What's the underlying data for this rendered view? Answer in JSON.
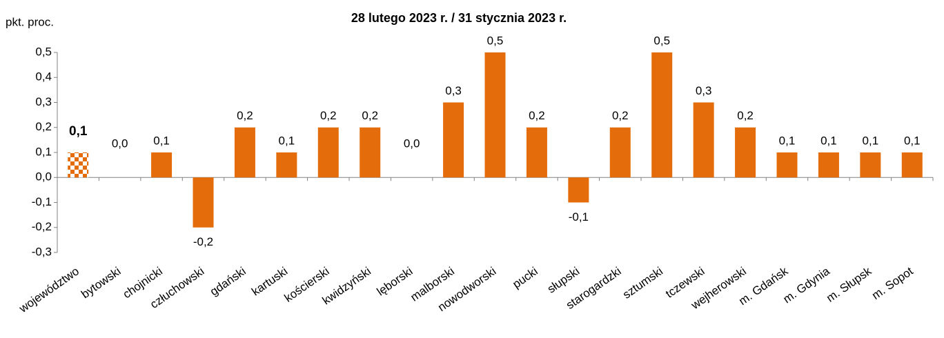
{
  "chart_data": {
    "type": "bar",
    "title": "28 lutego 2023 r. / 31 stycznia 2023 r.",
    "y_axis_label": "pkt. proc.",
    "categories": [
      "województwo",
      "bytowski",
      "chojnicki",
      "człuchowski",
      "gdański",
      "kartuski",
      "kościerski",
      "kwidzyński",
      "lęborski",
      "malborski",
      "nowodworski",
      "pucki",
      "słupski",
      "starogardzki",
      "sztumski",
      "tczewski",
      "wejherowski",
      "m. Gdańsk",
      "m. Gdynia",
      "m. Słupsk",
      "m. Sopot"
    ],
    "values": [
      0.1,
      0.0,
      0.1,
      -0.2,
      0.2,
      0.1,
      0.2,
      0.2,
      0.0,
      0.3,
      0.5,
      0.2,
      -0.1,
      0.2,
      0.5,
      0.3,
      0.2,
      0.1,
      0.1,
      0.1,
      0.1
    ],
    "value_labels": [
      "0,1",
      "0,0",
      "0,1",
      "-0,2",
      "0,2",
      "0,1",
      "0,2",
      "0,2",
      "0,0",
      "0,3",
      "0,5",
      "0,2",
      "-0,1",
      "0,2",
      "0,5",
      "0,3",
      "0,2",
      "0,1",
      "0,1",
      "0,1",
      "0,1"
    ],
    "color": "#e46c0a",
    "highlight_index": 0,
    "ylim": [
      -0.3,
      0.5
    ],
    "yticks": [
      {
        "value": -0.3,
        "label": "-0,3"
      },
      {
        "value": -0.2,
        "label": "-0,2"
      },
      {
        "value": -0.1,
        "label": "-0,1"
      },
      {
        "value": 0,
        "label": "0,0"
      },
      {
        "value": 0.1,
        "label": "0,1"
      },
      {
        "value": 0.2,
        "label": "0,2"
      },
      {
        "value": 0.3,
        "label": "0,3"
      },
      {
        "value": 0.4,
        "label": "0,4"
      },
      {
        "value": 0.5,
        "label": "0,5"
      }
    ],
    "grid": false
  }
}
